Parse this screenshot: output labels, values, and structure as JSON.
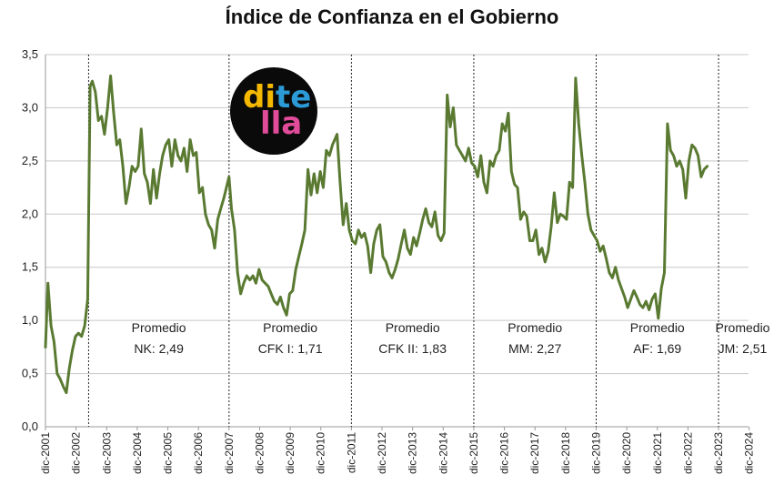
{
  "chart_data": {
    "type": "line",
    "title": "Índice de Confianza en el Gobierno",
    "xlabel": "",
    "ylabel": "",
    "ylim": [
      0,
      3.5
    ],
    "yticks": [
      "0,0",
      "0,5",
      "1,0",
      "1,5",
      "2,0",
      "2,5",
      "3,0",
      "3,5"
    ],
    "xticks": [
      "dic-2001",
      "dic-2002",
      "dic-2003",
      "dic-2004",
      "dic-2005",
      "dic-2006",
      "dic-2007",
      "dic-2008",
      "dic-2009",
      "dic-2010",
      "dic-2011",
      "dic-2012",
      "dic-2013",
      "dic-2014",
      "dic-2015",
      "dic-2016",
      "dic-2017",
      "dic-2018",
      "dic-2019",
      "dic-2020",
      "dic-2021",
      "dic-2022",
      "dic-2023",
      "dic-2024"
    ],
    "grid": "horizontal",
    "line_color": "#5a7a32",
    "series": [
      {
        "points": [
          [
            2001.92,
            0.75
          ],
          [
            2002.0,
            1.35
          ],
          [
            2002.1,
            0.95
          ],
          [
            2002.2,
            0.8
          ],
          [
            2002.3,
            0.5
          ],
          [
            2002.4,
            0.45
          ],
          [
            2002.5,
            0.38
          ],
          [
            2002.6,
            0.32
          ],
          [
            2002.7,
            0.55
          ],
          [
            2002.8,
            0.72
          ],
          [
            2002.9,
            0.85
          ],
          [
            2003.0,
            0.88
          ],
          [
            2003.1,
            0.85
          ],
          [
            2003.2,
            0.95
          ],
          [
            2003.3,
            1.2
          ],
          [
            2003.38,
            3.2
          ],
          [
            2003.45,
            3.25
          ],
          [
            2003.55,
            3.15
          ],
          [
            2003.65,
            2.88
          ],
          [
            2003.75,
            2.92
          ],
          [
            2003.85,
            2.75
          ],
          [
            2003.95,
            3.0
          ],
          [
            2004.05,
            3.3
          ],
          [
            2004.15,
            2.95
          ],
          [
            2004.25,
            2.65
          ],
          [
            2004.35,
            2.7
          ],
          [
            2004.45,
            2.45
          ],
          [
            2004.55,
            2.1
          ],
          [
            2004.65,
            2.25
          ],
          [
            2004.75,
            2.45
          ],
          [
            2004.85,
            2.4
          ],
          [
            2004.95,
            2.45
          ],
          [
            2005.05,
            2.8
          ],
          [
            2005.15,
            2.38
          ],
          [
            2005.25,
            2.3
          ],
          [
            2005.35,
            2.1
          ],
          [
            2005.45,
            2.42
          ],
          [
            2005.55,
            2.15
          ],
          [
            2005.65,
            2.38
          ],
          [
            2005.75,
            2.55
          ],
          [
            2005.85,
            2.65
          ],
          [
            2005.95,
            2.7
          ],
          [
            2006.05,
            2.45
          ],
          [
            2006.15,
            2.7
          ],
          [
            2006.25,
            2.55
          ],
          [
            2006.35,
            2.5
          ],
          [
            2006.45,
            2.62
          ],
          [
            2006.55,
            2.4
          ],
          [
            2006.65,
            2.7
          ],
          [
            2006.75,
            2.55
          ],
          [
            2006.85,
            2.58
          ],
          [
            2006.95,
            2.2
          ],
          [
            2007.05,
            2.25
          ],
          [
            2007.15,
            2.0
          ],
          [
            2007.25,
            1.9
          ],
          [
            2007.35,
            1.85
          ],
          [
            2007.45,
            1.68
          ],
          [
            2007.55,
            1.95
          ],
          [
            2007.65,
            2.05
          ],
          [
            2007.75,
            2.15
          ],
          [
            2007.92,
            2.35
          ],
          [
            2008.0,
            2.05
          ],
          [
            2008.1,
            1.85
          ],
          [
            2008.2,
            1.45
          ],
          [
            2008.3,
            1.25
          ],
          [
            2008.4,
            1.35
          ],
          [
            2008.5,
            1.42
          ],
          [
            2008.6,
            1.38
          ],
          [
            2008.7,
            1.42
          ],
          [
            2008.8,
            1.35
          ],
          [
            2008.9,
            1.48
          ],
          [
            2009.0,
            1.38
          ],
          [
            2009.1,
            1.35
          ],
          [
            2009.2,
            1.32
          ],
          [
            2009.3,
            1.25
          ],
          [
            2009.4,
            1.18
          ],
          [
            2009.5,
            1.15
          ],
          [
            2009.6,
            1.22
          ],
          [
            2009.7,
            1.12
          ],
          [
            2009.8,
            1.05
          ],
          [
            2009.9,
            1.25
          ],
          [
            2010.0,
            1.28
          ],
          [
            2010.1,
            1.48
          ],
          [
            2010.2,
            1.6
          ],
          [
            2010.3,
            1.72
          ],
          [
            2010.4,
            1.85
          ],
          [
            2010.5,
            2.42
          ],
          [
            2010.6,
            2.18
          ],
          [
            2010.7,
            2.38
          ],
          [
            2010.8,
            2.2
          ],
          [
            2010.9,
            2.4
          ],
          [
            2011.0,
            2.25
          ],
          [
            2011.1,
            2.6
          ],
          [
            2011.2,
            2.55
          ],
          [
            2011.3,
            2.65
          ],
          [
            2011.45,
            2.75
          ],
          [
            2011.55,
            2.3
          ],
          [
            2011.65,
            1.9
          ],
          [
            2011.75,
            2.1
          ],
          [
            2011.85,
            1.85
          ],
          [
            2011.95,
            1.75
          ],
          [
            2012.05,
            1.72
          ],
          [
            2012.15,
            1.85
          ],
          [
            2012.25,
            1.78
          ],
          [
            2012.35,
            1.82
          ],
          [
            2012.45,
            1.7
          ],
          [
            2012.55,
            1.45
          ],
          [
            2012.65,
            1.72
          ],
          [
            2012.75,
            1.85
          ],
          [
            2012.85,
            1.9
          ],
          [
            2012.95,
            1.6
          ],
          [
            2013.05,
            1.55
          ],
          [
            2013.15,
            1.45
          ],
          [
            2013.25,
            1.4
          ],
          [
            2013.35,
            1.48
          ],
          [
            2013.45,
            1.58
          ],
          [
            2013.55,
            1.72
          ],
          [
            2013.65,
            1.85
          ],
          [
            2013.75,
            1.68
          ],
          [
            2013.85,
            1.62
          ],
          [
            2013.95,
            1.78
          ],
          [
            2014.05,
            1.7
          ],
          [
            2014.15,
            1.82
          ],
          [
            2014.25,
            1.95
          ],
          [
            2014.35,
            2.05
          ],
          [
            2014.45,
            1.92
          ],
          [
            2014.55,
            1.88
          ],
          [
            2014.65,
            2.02
          ],
          [
            2014.75,
            1.8
          ],
          [
            2014.85,
            1.75
          ],
          [
            2014.95,
            1.82
          ],
          [
            2015.05,
            3.12
          ],
          [
            2015.15,
            2.82
          ],
          [
            2015.25,
            3.0
          ],
          [
            2015.35,
            2.65
          ],
          [
            2015.45,
            2.6
          ],
          [
            2015.55,
            2.55
          ],
          [
            2015.65,
            2.5
          ],
          [
            2015.75,
            2.62
          ],
          [
            2015.85,
            2.48
          ],
          [
            2015.95,
            2.45
          ],
          [
            2016.05,
            2.35
          ],
          [
            2016.15,
            2.55
          ],
          [
            2016.25,
            2.3
          ],
          [
            2016.35,
            2.2
          ],
          [
            2016.45,
            2.5
          ],
          [
            2016.55,
            2.45
          ],
          [
            2016.65,
            2.55
          ],
          [
            2016.75,
            2.6
          ],
          [
            2016.85,
            2.85
          ],
          [
            2016.95,
            2.78
          ],
          [
            2017.05,
            2.95
          ],
          [
            2017.15,
            2.4
          ],
          [
            2017.25,
            2.28
          ],
          [
            2017.35,
            2.25
          ],
          [
            2017.45,
            1.95
          ],
          [
            2017.55,
            2.02
          ],
          [
            2017.65,
            1.98
          ],
          [
            2017.75,
            1.75
          ],
          [
            2017.85,
            1.75
          ],
          [
            2017.95,
            1.85
          ],
          [
            2018.05,
            1.62
          ],
          [
            2018.15,
            1.68
          ],
          [
            2018.25,
            1.55
          ],
          [
            2018.35,
            1.65
          ],
          [
            2018.45,
            1.88
          ],
          [
            2018.55,
            2.2
          ],
          [
            2018.65,
            1.92
          ],
          [
            2018.75,
            2.0
          ],
          [
            2018.85,
            1.98
          ],
          [
            2018.95,
            1.95
          ],
          [
            2019.05,
            2.3
          ],
          [
            2019.15,
            2.25
          ],
          [
            2019.25,
            3.28
          ],
          [
            2019.35,
            2.85
          ],
          [
            2019.45,
            2.55
          ],
          [
            2019.55,
            2.3
          ],
          [
            2019.65,
            2.0
          ],
          [
            2019.75,
            1.85
          ],
          [
            2019.85,
            1.8
          ],
          [
            2019.95,
            1.75
          ],
          [
            2020.05,
            1.65
          ],
          [
            2020.15,
            1.7
          ],
          [
            2020.25,
            1.58
          ],
          [
            2020.35,
            1.45
          ],
          [
            2020.45,
            1.4
          ],
          [
            2020.55,
            1.5
          ],
          [
            2020.65,
            1.38
          ],
          [
            2020.75,
            1.3
          ],
          [
            2020.85,
            1.22
          ],
          [
            2020.95,
            1.12
          ],
          [
            2021.05,
            1.2
          ],
          [
            2021.15,
            1.28
          ],
          [
            2021.25,
            1.22
          ],
          [
            2021.35,
            1.15
          ],
          [
            2021.45,
            1.12
          ],
          [
            2021.55,
            1.18
          ],
          [
            2021.65,
            1.1
          ],
          [
            2021.75,
            1.2
          ],
          [
            2021.85,
            1.25
          ],
          [
            2021.95,
            1.02
          ],
          [
            2022.05,
            1.3
          ],
          [
            2022.15,
            1.45
          ],
          [
            2022.25,
            2.85
          ],
          [
            2022.35,
            2.6
          ],
          [
            2022.45,
            2.55
          ],
          [
            2022.55,
            2.45
          ],
          [
            2022.65,
            2.5
          ],
          [
            2022.75,
            2.42
          ],
          [
            2022.85,
            2.15
          ],
          [
            2022.95,
            2.5
          ],
          [
            2023.05,
            2.65
          ],
          [
            2023.15,
            2.62
          ],
          [
            2023.25,
            2.55
          ],
          [
            2023.35,
            2.35
          ],
          [
            2023.45,
            2.42
          ],
          [
            2023.55,
            2.45
          ]
        ]
      }
    ],
    "periods": [
      {
        "label_line1": "Promedio",
        "label_line2": "NK: 2,49",
        "start": 2003.33
      },
      {
        "label_line1": "Promedio",
        "label_line2": "CFK I: 1,71",
        "start": 2007.92
      },
      {
        "label_line1": "Promedio",
        "label_line2": "CFK II: 1,83",
        "start": 2011.92
      },
      {
        "label_line1": "Promedio",
        "label_line2": "MM: 2,27",
        "start": 2015.92
      },
      {
        "label_line1": "Promedio",
        "label_line2": "AF: 1,69",
        "start": 2019.92
      },
      {
        "label_line1": "Promedio",
        "label_line2": "JM: 2,51",
        "start": 2023.92
      }
    ]
  },
  "logo": {
    "word1": "di",
    "word2": "te",
    "word3": "lla",
    "colors": [
      "#f5b800",
      "#2b9ad6",
      "#e04b9a"
    ]
  }
}
